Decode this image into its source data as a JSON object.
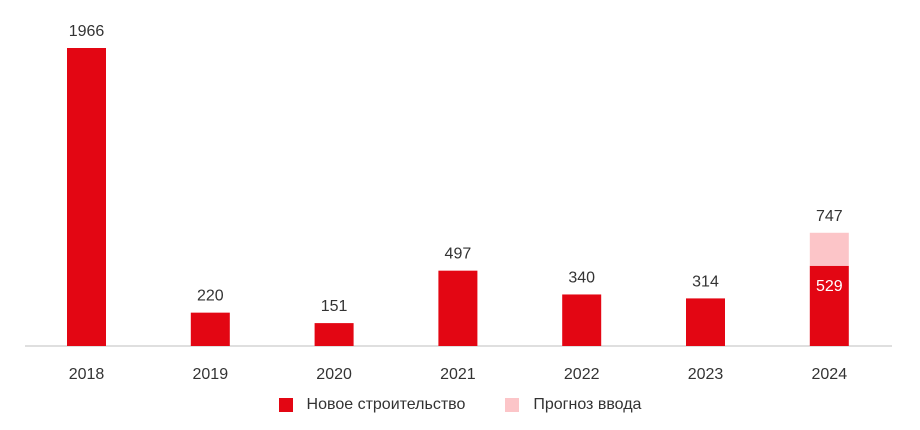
{
  "chart_data": {
    "type": "bar",
    "categories": [
      "2018",
      "2019",
      "2020",
      "2021",
      "2022",
      "2023",
      "2024"
    ],
    "series": [
      {
        "name": "Новое строительство",
        "values": [
          1966,
          220,
          151,
          497,
          340,
          314,
          529
        ],
        "color": "#e30613"
      },
      {
        "name": "Прогноз ввода",
        "values": [
          0,
          0,
          0,
          0,
          0,
          0,
          218
        ],
        "color": "#fcc5c8"
      }
    ],
    "data_labels": [
      "1966",
      "220",
      "151",
      "497",
      "340",
      "314",
      "747"
    ],
    "inner_labels": [
      "",
      "",
      "",
      "",
      "",
      "",
      "529"
    ],
    "stacked": true,
    "ylim": [
      0,
      1966
    ],
    "axis_color": "#bfbfbf",
    "grid": false,
    "legend_position": "bottom"
  }
}
